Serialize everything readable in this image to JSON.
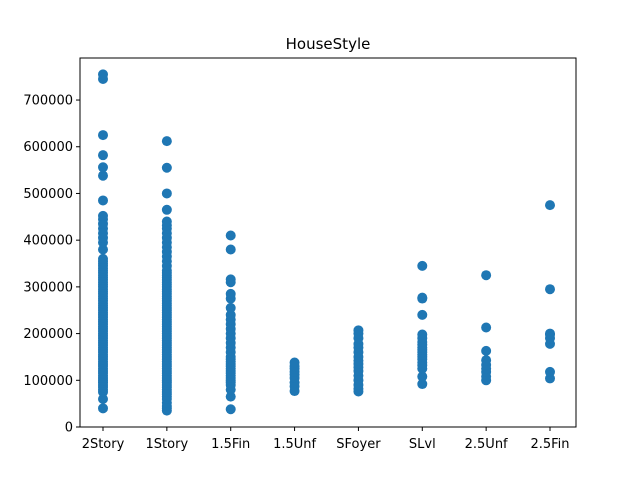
{
  "chart_data": {
    "type": "scatter",
    "title": "HouseStyle",
    "xlabel": "",
    "ylabel": "",
    "categories": [
      "2Story",
      "1Story",
      "1.5Fin",
      "1.5Unf",
      "SFoyer",
      "SLvl",
      "2.5Unf",
      "2.5Fin"
    ],
    "ylim": [
      0,
      790000
    ],
    "yticks": [
      0,
      100000,
      200000,
      300000,
      400000,
      500000,
      600000,
      700000
    ],
    "ytick_labels": [
      "0",
      "100000",
      "200000",
      "300000",
      "400000",
      "500000",
      "600000",
      "700000"
    ],
    "grid": false,
    "marker_color": "#1f77b4",
    "points": {
      "2Story": [
        40000,
        60000,
        75000,
        80000,
        85000,
        90000,
        95000,
        100000,
        105000,
        110000,
        115000,
        120000,
        125000,
        130000,
        135000,
        140000,
        145000,
        150000,
        155000,
        160000,
        165000,
        170000,
        175000,
        180000,
        185000,
        190000,
        195000,
        200000,
        205000,
        210000,
        215000,
        220000,
        225000,
        230000,
        235000,
        240000,
        245000,
        250000,
        255000,
        260000,
        265000,
        270000,
        275000,
        280000,
        285000,
        290000,
        295000,
        300000,
        305000,
        310000,
        315000,
        320000,
        325000,
        330000,
        335000,
        340000,
        345000,
        350000,
        355000,
        360000,
        380000,
        395000,
        405000,
        415000,
        425000,
        435000,
        445000,
        452000,
        485000,
        538000,
        556000,
        582000,
        625000,
        745000,
        755000
      ],
      "1Story": [
        35000,
        40000,
        45000,
        52000,
        60000,
        65000,
        70000,
        75000,
        80000,
        85000,
        90000,
        95000,
        100000,
        105000,
        110000,
        115000,
        120000,
        125000,
        130000,
        135000,
        140000,
        145000,
        150000,
        155000,
        160000,
        165000,
        170000,
        175000,
        180000,
        185000,
        190000,
        195000,
        200000,
        205000,
        210000,
        215000,
        220000,
        225000,
        230000,
        235000,
        240000,
        245000,
        250000,
        255000,
        260000,
        265000,
        270000,
        275000,
        280000,
        285000,
        290000,
        295000,
        300000,
        305000,
        310000,
        315000,
        320000,
        325000,
        330000,
        335000,
        345000,
        355000,
        365000,
        375000,
        385000,
        395000,
        405000,
        415000,
        425000,
        432000,
        440000,
        465000,
        500000,
        555000,
        612000
      ],
      "1.5Fin": [
        38000,
        65000,
        80000,
        90000,
        95000,
        100000,
        105000,
        110000,
        115000,
        120000,
        125000,
        130000,
        135000,
        140000,
        145000,
        150000,
        160000,
        170000,
        180000,
        190000,
        200000,
        210000,
        220000,
        230000,
        240000,
        255000,
        275000,
        285000,
        310000,
        316000,
        380000,
        410000
      ],
      "1.5Unf": [
        77000,
        87000,
        95000,
        105000,
        112000,
        118000,
        125000,
        130000,
        138000
      ],
      "SFoyer": [
        76000,
        82000,
        90000,
        100000,
        110000,
        120000,
        128000,
        135000,
        142000,
        150000,
        160000,
        170000,
        178000,
        190000,
        200000,
        207000
      ],
      "SLvl": [
        92000,
        108000,
        125000,
        132000,
        138000,
        145000,
        150000,
        155000,
        160000,
        165000,
        170000,
        176000,
        182000,
        190000,
        198000,
        240000,
        275000,
        277000,
        345000
      ],
      "2.5Unf": [
        100000,
        108000,
        118000,
        125000,
        133000,
        143000,
        163000,
        213000,
        325000
      ],
      "2.5Fin": [
        104000,
        118000,
        178000,
        190000,
        198000,
        200000,
        295000,
        475000
      ]
    }
  }
}
